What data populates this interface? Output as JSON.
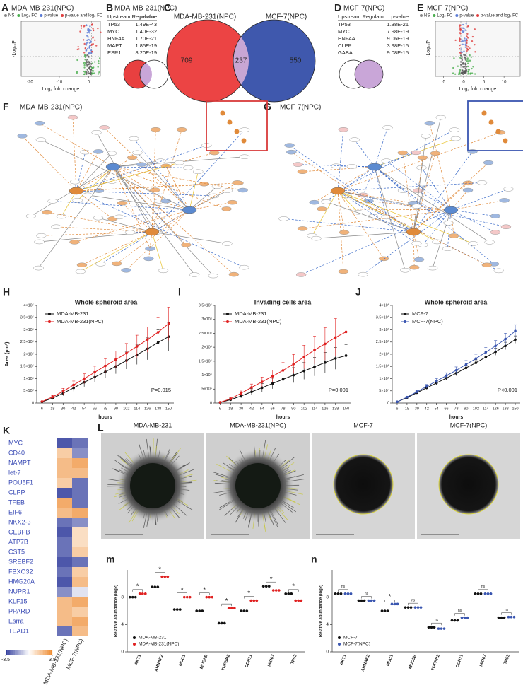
{
  "panel_labels": [
    "A",
    "B",
    "C",
    "D",
    "E",
    "F",
    "G",
    "H",
    "I",
    "J",
    "K",
    "L",
    "m",
    "n"
  ],
  "volcano": [
    {
      "title": "MDA-MB-231(NPC)",
      "legend": [
        "NS",
        "Log₂ FC",
        "p-value",
        "p-value and log₂ FC"
      ],
      "xlabel": "Log₂ fold change",
      "ylabel": "-Log₁₀P",
      "xlim": [
        -23,
        4
      ],
      "xticks": [
        -20,
        -10,
        0
      ]
    },
    {
      "title": "MCF-7(NPC)",
      "legend": [
        "NS",
        "Log₂ FC",
        "p-value",
        "p-value and log₂ FC"
      ],
      "xlabel": "Log₂ fold change",
      "ylabel": "-Log₁₀P",
      "xlim": [
        -7,
        14
      ],
      "xticks": [
        -5,
        0,
        5,
        10
      ]
    }
  ],
  "tables": [
    {
      "title": "MDA-MB-231(NPC)",
      "columns": [
        "Upstream Regulator",
        "p-value"
      ],
      "rows": [
        [
          "TP53",
          "1.49E-43"
        ],
        [
          "MYC",
          "1.40E-32"
        ],
        [
          "HNF4A",
          "1.70E-21"
        ],
        [
          "MAPT",
          "1.85E-19"
        ],
        [
          "ESR1",
          "8.20E-19"
        ]
      ]
    },
    {
      "title": "MCF-7(NPC)",
      "columns": [
        "Upstream Regulator",
        "p-value"
      ],
      "rows": [
        [
          "TP53",
          "1.38E-21"
        ],
        [
          "MYC",
          "7.98E-19"
        ],
        [
          "HNF4A",
          "9.06E-19"
        ],
        [
          "CLPP",
          "3.98E-15"
        ],
        [
          "GABA",
          "9.08E-15"
        ]
      ]
    }
  ],
  "venn": {
    "sets": [
      "MDA-MB-231(NPC)",
      "MCF-7(NPC)"
    ],
    "counts": [
      709,
      237,
      550
    ]
  },
  "networks": [
    {
      "title": "MDA-MB-231(NPC)"
    },
    {
      "title": "MCF-7(NPC)"
    }
  ],
  "chart_data": [
    {
      "type": "line",
      "title": "Whole spheroid area",
      "ylabel": "Area (μm²)",
      "xlabel": "hours",
      "annotation": "P=0.015",
      "x": [
        6,
        18,
        30,
        42,
        54,
        66,
        78,
        90,
        102,
        114,
        126,
        138,
        150
      ],
      "xlim": [
        0,
        156
      ],
      "xticks": [
        6,
        18,
        30,
        42,
        54,
        66,
        78,
        90,
        102,
        114,
        126,
        138,
        150
      ],
      "ylim": [
        0,
        400000
      ],
      "yticks": [
        0,
        {
          "value": 50000,
          "label": "5×10⁴"
        },
        {
          "value": 100000,
          "label": "1×10⁵"
        },
        {
          "value": 150000,
          "label": "1.5×10⁵"
        },
        {
          "value": 200000,
          "label": "2×10⁵"
        },
        {
          "value": 250000,
          "label": "2.5×10⁵"
        },
        {
          "value": 300000,
          "label": "3×10⁵"
        },
        {
          "value": 350000,
          "label": "3.5×10⁵"
        },
        {
          "value": 400000,
          "label": "4×10⁵"
        }
      ],
      "series": [
        {
          "name": "MDA-MB-231",
          "color": "#111111",
          "values": [
            5000,
            20000,
            40000,
            62000,
            85000,
            106000,
            128000,
            150000,
            174000,
            198000,
            222000,
            248000,
            272000
          ],
          "errors": [
            2000,
            6000,
            10000,
            14000,
            18000,
            22000,
            26000,
            30000,
            35000,
            40000,
            45000,
            52000,
            58000
          ]
        },
        {
          "name": "MDA-MB-231(NPC)",
          "color": "#e02020",
          "values": [
            6000,
            25000,
            48000,
            74000,
            100000,
            126000,
            152000,
            178000,
            204000,
            232000,
            260000,
            290000,
            325000
          ],
          "errors": [
            2000,
            6000,
            12000,
            16000,
            20000,
            25000,
            30000,
            35000,
            40000,
            46000,
            52000,
            60000,
            68000
          ]
        }
      ]
    },
    {
      "type": "line",
      "title": "Invading cells area",
      "xlabel": "hours",
      "annotation": "P=0.001",
      "x": [
        6,
        18,
        30,
        42,
        54,
        66,
        78,
        90,
        102,
        114,
        126,
        138,
        150
      ],
      "xlim": [
        0,
        156
      ],
      "xticks": [
        6,
        18,
        30,
        42,
        54,
        66,
        78,
        90,
        102,
        114,
        126,
        138,
        150
      ],
      "ylim": [
        0,
        3500000
      ],
      "yticks": [
        0,
        {
          "value": 500000,
          "label": "5×10⁵"
        },
        {
          "value": 1000000,
          "label": "1×10⁶"
        },
        {
          "value": 1500000,
          "label": "1.5×10⁶"
        },
        {
          "value": 2000000,
          "label": "2×10⁶"
        },
        {
          "value": 2500000,
          "label": "2.5×10⁶"
        },
        {
          "value": 3000000,
          "label": "3×10⁶"
        },
        {
          "value": 3500000,
          "label": "3.5×10⁶"
        }
      ],
      "series": [
        {
          "name": "MDA-MB-231",
          "color": "#111111",
          "values": [
            20000,
            120000,
            250000,
            400000,
            550000,
            700000,
            850000,
            1000000,
            1150000,
            1300000,
            1450000,
            1600000,
            1700000
          ],
          "errors": [
            10000,
            40000,
            70000,
            110000,
            150000,
            190000,
            230000,
            270000,
            300000,
            330000,
            360000,
            390000,
            400000
          ]
        },
        {
          "name": "MDA-MB-231(NPC)",
          "color": "#e02020",
          "values": [
            25000,
            150000,
            350000,
            560000,
            760000,
            960000,
            1170000,
            1400000,
            1650000,
            1900000,
            2120000,
            2350000,
            2550000
          ],
          "errors": [
            10000,
            40000,
            80000,
            120000,
            170000,
            220000,
            280000,
            340000,
            420000,
            500000,
            580000,
            680000,
            780000
          ]
        }
      ]
    },
    {
      "type": "line",
      "title": "Whole spheroid area",
      "xlabel": "hours",
      "annotation": "P<0.001",
      "x": [
        6,
        18,
        30,
        42,
        54,
        66,
        78,
        90,
        102,
        114,
        126,
        138,
        150
      ],
      "xlim": [
        0,
        156
      ],
      "xticks": [
        6,
        18,
        30,
        42,
        54,
        66,
        78,
        90,
        102,
        114,
        126,
        138,
        150
      ],
      "ylim": [
        0,
        400000
      ],
      "yticks": [
        0,
        {
          "value": 50000,
          "label": "5×10⁴"
        },
        {
          "value": 100000,
          "label": "1×10⁵"
        },
        {
          "value": 150000,
          "label": "1.5×10⁵"
        },
        {
          "value": 200000,
          "label": "2×10⁵"
        },
        {
          "value": 250000,
          "label": "2.5×10⁵"
        },
        {
          "value": 300000,
          "label": "3×10⁵"
        },
        {
          "value": 350000,
          "label": "3.5×10⁵"
        },
        {
          "value": 400000,
          "label": "4×10⁵"
        }
      ],
      "series": [
        {
          "name": "MCF-7",
          "color": "#111111",
          "values": [
            5000,
            22000,
            42000,
            62000,
            82000,
            102000,
            122000,
            144000,
            165000,
            188000,
            210000,
            234000,
            260000
          ],
          "errors": [
            1000,
            3000,
            5000,
            6000,
            8000,
            9000,
            10000,
            11000,
            12000,
            13000,
            14000,
            15000,
            15000
          ]
        },
        {
          "name": "MCF-7(NPC)",
          "color": "#3a56b0",
          "values": [
            5000,
            24000,
            46000,
            68000,
            90000,
            112000,
            134000,
            158000,
            182000,
            208000,
            234000,
            262000,
            295000
          ],
          "errors": [
            1000,
            4000,
            6000,
            8000,
            10000,
            12000,
            14000,
            16000,
            18000,
            20000,
            22000,
            24000,
            26000
          ]
        }
      ]
    },
    {
      "type": "heatmap",
      "rows": [
        "MYC",
        "CD40",
        "NAMPT",
        "let-7",
        "POU5F1",
        "CLPP",
        "TFEB",
        "EIF6",
        "NKX2-3",
        "CEBPB",
        "ATP7B",
        "CST5",
        "SREBF2",
        "FBXO32",
        "HMG20A",
        "NUPR1",
        "KLF15",
        "PPARD",
        "Esrra",
        "TEAD1"
      ],
      "columns": [
        "MDA-MB-231(NPC)",
        "MCF-7(NPC)"
      ],
      "label_color": "#3a4bb5",
      "values": [
        [
          -3,
          -2.5
        ],
        [
          1.5,
          -2
        ],
        [
          2,
          2.5
        ],
        [
          2,
          2
        ],
        [
          1.5,
          -2.5
        ],
        [
          -3,
          -2.5
        ],
        [
          2.5,
          -2.5
        ],
        [
          2,
          2.5
        ],
        [
          -2.5,
          -2
        ],
        [
          -3,
          1
        ],
        [
          -2.5,
          1
        ],
        [
          -2.5,
          1.5
        ],
        [
          -3,
          -2.5
        ],
        [
          -2.5,
          1.5
        ],
        [
          -3,
          2
        ],
        [
          -2,
          -0.5
        ],
        [
          2,
          2.5
        ],
        [
          2,
          1.5
        ],
        [
          2,
          2.5
        ],
        [
          -2.5,
          2
        ]
      ],
      "zlim": [
        -3.5,
        3.5
      ],
      "colorbar_ticks": [
        -3.5,
        3.5
      ],
      "low_color": "#2f3b9c",
      "high_color": "#ee8a2e"
    },
    {
      "type": "dot",
      "ylabel": "Relative abundance (log2)",
      "categories": [
        "AKT1",
        "AHNAK2",
        "MUC1",
        "MUC5B",
        "TGFBR2",
        "CDH11",
        "MKI67",
        "TP53"
      ],
      "ylim": [
        0,
        12
      ],
      "yticks": [
        0,
        4,
        8
      ],
      "annotations": [
        "*",
        "*",
        "*",
        "*",
        "*",
        "*",
        "*",
        "*"
      ],
      "series": [
        {
          "name": "MDA-MB-231",
          "color": "#111111",
          "values": [
            8,
            9.5,
            6.2,
            6,
            4.2,
            6,
            9.6,
            8.5
          ]
        },
        {
          "name": "MDA-MB-231(NPC)",
          "color": "#e02020",
          "values": [
            8.5,
            11,
            8,
            8,
            6.4,
            7.5,
            9,
            7.5
          ]
        }
      ]
    },
    {
      "type": "dot",
      "ylabel": "Relative abundance (log2)",
      "categories": [
        "AKT1",
        "AHNAK2",
        "MUC1",
        "MUC5B",
        "TGFBR2",
        "CDH11",
        "MKI67",
        "TP53"
      ],
      "ylim": [
        0,
        12
      ],
      "yticks": [
        0,
        4,
        8
      ],
      "annotations": [
        "ns",
        "ns",
        "*",
        "ns",
        "ns",
        "ns",
        "ns",
        "ns"
      ],
      "series": [
        {
          "name": "MCF-7",
          "color": "#111111",
          "values": [
            8.5,
            7.5,
            6,
            6.5,
            3.6,
            4.6,
            8.5,
            5
          ]
        },
        {
          "name": "MCF-7(NPC)",
          "color": "#3a56b0",
          "values": [
            8.5,
            7.5,
            7,
            6.5,
            3.4,
            5,
            8.5,
            5.1
          ]
        }
      ]
    }
  ],
  "images": {
    "titles": [
      "MDA-MB-231",
      "MDA-MB-231(NPC)",
      "MCF-7",
      "MCF-7(NPC)"
    ]
  }
}
